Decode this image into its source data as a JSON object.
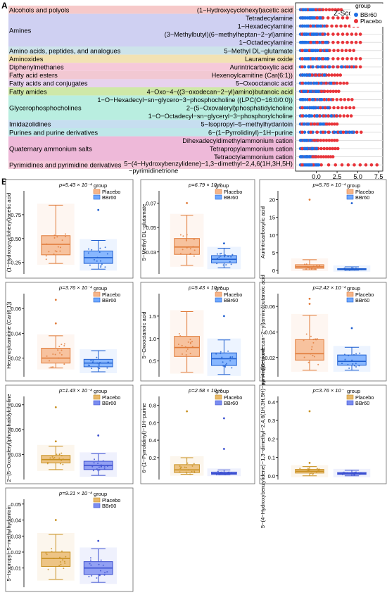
{
  "panel_labels": {
    "a": "A",
    "b": "B"
  },
  "chart_data": [
    {
      "type": "scatter",
      "panel": "A",
      "xlabel": "Z-Score",
      "xlim": [
        -2.5,
        8
      ],
      "xticks": [
        "0.0",
        "2.5",
        "5.0",
        "7.5"
      ],
      "xtick_values": [
        0,
        2.5,
        5,
        7.5
      ],
      "legend": {
        "title": "group",
        "placement": "top-right",
        "items": [
          {
            "name": "BBr60",
            "color": "#1f6fe5"
          },
          {
            "name": "Placebo",
            "color": "#e8343a"
          }
        ]
      },
      "classes": [
        {
          "name": "Alcohols and polyols",
          "color": "#f6c9c9",
          "rows": 1
        },
        {
          "name": "Amines",
          "color": "#cfd0f2",
          "rows": 4
        },
        {
          "name": "Amino acids, peptides, and analogues",
          "color": "#cde3ea",
          "rows": 1
        },
        {
          "name": "Aminoxides",
          "color": "#f2e2b4",
          "rows": 1
        },
        {
          "name": "Diphenylmethanes",
          "color": "#f6c9d9",
          "rows": 1
        },
        {
          "name": "Fatty acid esters",
          "color": "#f2c8d2",
          "rows": 1
        },
        {
          "name": "Fatty acids and conjugates",
          "color": "#e7d2ee",
          "rows": 1
        },
        {
          "name": "Fatty amides",
          "color": "#cfe8a8",
          "rows": 1
        },
        {
          "name": "Glycerophosphocholines",
          "color": "#b9eee0",
          "rows": 3
        },
        {
          "name": "Imidazolidines",
          "color": "#c6def0",
          "rows": 1
        },
        {
          "name": "Purines and purine derivatives",
          "color": "#bfe7e9",
          "rows": 1
        },
        {
          "name": "Quaternary ammonium salts",
          "color": "#eeb9d9",
          "rows": 3
        },
        {
          "name": "Pyrimidines and pyrimidine derivatives",
          "color": "#f6c9da",
          "rows": 1
        }
      ],
      "metabolites": [
        {
          "name": "(1−Hydroxycyclohexyl)acetic acid",
          "bbr_max": 0.7,
          "pla_max": 3.0
        },
        {
          "name": "Tetradecylamine",
          "bbr_max": 0.8,
          "pla_max": 5.3
        },
        {
          "name": "1−Hexadecylamine",
          "bbr_max": 1.2,
          "pla_max": 5.0
        },
        {
          "name": "(3−Methylbutyl)(6−methylheptan−2−yl)amine",
          "bbr_max": 1.0,
          "pla_max": 5.3
        },
        {
          "name": "1−Octadecylamine",
          "bbr_max": 1.4,
          "pla_max": 5.3
        },
        {
          "name": "5−Methyl DL−glutamate",
          "bbr_max": 1.4,
          "pla_max": 4.5
        },
        {
          "name": "Lauramine oxide",
          "bbr_max": 1.4,
          "pla_max": 5.3
        },
        {
          "name": "Aurintricarboxylic acid",
          "bbr_max": 4.5,
          "pla_max": 5.3
        },
        {
          "name": "Hexenoylcarnitine (Car(6:1))",
          "bbr_max": 1.2,
          "pla_max": 2.9
        },
        {
          "name": "5−Oxooctanoic acid",
          "bbr_max": 2.2,
          "pla_max": 3.7
        },
        {
          "name": "4−Oxo−4−((3−oxodecan−2−yl)amino)butanoic acid",
          "bbr_max": 0.9,
          "pla_max": 2.7
        },
        {
          "name": "1−O−Hexadecyl−sn−glycero−3−phosphocholine ((LPC(O−16:0/0:0))",
          "bbr_max": 1.8,
          "pla_max": 4.3
        },
        {
          "name": "2−(5−Oxovaleryl)phosphatidylcholine",
          "bbr_max": 1.6,
          "pla_max": 4.5
        },
        {
          "name": "1−O−Octadecyl−sn−glyceryl−3−phosphorylcholine",
          "bbr_max": 2.5,
          "pla_max": 4.2
        },
        {
          "name": "5−Isopropyl−5−methylhydantoin",
          "bbr_max": 1.3,
          "pla_max": 2.5
        },
        {
          "name": "6−(1−Pyrrolidinyl)−1H−purine",
          "bbr_max": 4.5,
          "pla_max": 5.4
        },
        {
          "name": "Dihexadecyldimethylammonium cation",
          "bbr_max": 0.2,
          "pla_max": 2.5
        },
        {
          "name": "Tetrapropylammonium cation",
          "bbr_max": 0.1,
          "pla_max": 2.6
        },
        {
          "name": "Tetraoctylammonium cation",
          "bbr_max": 0.0,
          "pla_max": 2.0
        },
        {
          "name": "5−(4−Hydroxybenzylidene)−1,3−dimethyl−2,4,6(1H,3H,5H)\n−pyrimidinetrione",
          "bbr_max": 0.3,
          "pla_max": 7.3
        }
      ]
    },
    {
      "type": "box",
      "panel": "B",
      "legend": {
        "title": "group",
        "items": [
          {
            "name": "Placebo"
          },
          {
            "name": "BBr60"
          }
        ]
      },
      "colors": {
        "placebo_fill": "#f5b58a",
        "placebo_stroke": "#e07b39",
        "bbr_fill": "#6ea8ff",
        "bbr_stroke": "#1f5fd0",
        "placebo_fill_alt": "#e8b86a",
        "placebo_stroke_alt": "#c89020",
        "bbr_fill_alt": "#7a8cf0",
        "bbr_stroke_alt": "#3b4fd0"
      },
      "plots": [
        {
          "ylabel": "(1−Hydroxycyclohexyl)acetic acid",
          "p": "p=5.43 × 10⁻⁴",
          "yticks": [
            "0.25",
            "0.50",
            "0.75"
          ],
          "ytick_values": [
            0.25,
            0.5,
            0.75
          ],
          "ylim": [
            0.13,
            1.0
          ],
          "placebo": [
            0.24,
            0.33,
            0.44,
            0.53,
            0.85
          ],
          "bbr": [
            0.18,
            0.24,
            0.3,
            0.37,
            0.48
          ],
          "placebo_out": [],
          "bbr_out": [
            0.8
          ],
          "alt": false
        },
        {
          "ylabel": "5−Methyl DL−glutamate",
          "p": "p=6.79 × 10⁻⁵",
          "yticks": [
            "0.03",
            "0.05",
            "0.07"
          ],
          "ytick_values": [
            0.03,
            0.05,
            0.07
          ],
          "ylim": [
            0.012,
            0.08
          ],
          "placebo": [
            0.019,
            0.028,
            0.034,
            0.041,
            0.06
          ],
          "bbr": [
            0.017,
            0.021,
            0.024,
            0.027,
            0.033
          ],
          "placebo_out": [
            0.07
          ],
          "bbr_out": [
            0.037
          ],
          "alt": false
        },
        {
          "ylabel": "Aurintricarboxylic acid",
          "p": "p=5.76 × 10⁻⁴",
          "yticks": [
            "0",
            "5",
            "10",
            "15",
            "20"
          ],
          "ytick_values": [
            0,
            5,
            10,
            15,
            20
          ],
          "ylim": [
            -1,
            22.5
          ],
          "placebo": [
            0.2,
            0.6,
            1.0,
            1.6,
            3.0
          ],
          "bbr": [
            0.05,
            0.15,
            0.3,
            0.5,
            1.0
          ],
          "placebo_out": [
            20
          ],
          "bbr_out": [
            19
          ],
          "alt": false
        },
        {
          "ylabel": "Hexenoylcarnitine (Car(6:1))",
          "p": "p=3.76 × 10⁻⁴",
          "yticks": [
            "0.02",
            "0.04",
            "0.06"
          ],
          "ytick_values": [
            0.02,
            0.04,
            0.06
          ],
          "ylim": [
            0.005,
            0.072
          ],
          "placebo": [
            0.012,
            0.016,
            0.02,
            0.028,
            0.038
          ],
          "bbr": [
            0.009,
            0.013,
            0.016,
            0.019,
            0.026
          ],
          "placebo_out": [
            0.048,
            0.067
          ],
          "bbr_out": [],
          "alt": false
        },
        {
          "ylabel": "5−Oxooctanoic acid",
          "p": "p=5.43 × 10⁻⁴",
          "yticks": [
            "0.5",
            "1.0",
            "1.5"
          ],
          "ytick_values": [
            0.5,
            1.0,
            1.5
          ],
          "ylim": [
            0.15,
            2.0
          ],
          "placebo": [
            0.25,
            0.6,
            0.8,
            1.05,
            1.6
          ],
          "bbr": [
            0.2,
            0.4,
            0.55,
            0.68,
            0.97
          ],
          "placebo_out": [],
          "bbr_out": [
            1.5
          ],
          "alt": false
        },
        {
          "ylabel": "4−Oxo−4−((3−oxodecan−2−yl)amino)butanoic acid",
          "p": "p=2.42 × 10⁻⁴",
          "yticks": [
            "0.02",
            "0.04",
            "0.06"
          ],
          "ytick_values": [
            0.02,
            0.04,
            0.06
          ],
          "ylim": [
            0.005,
            0.07
          ],
          "placebo": [
            0.01,
            0.018,
            0.023,
            0.034,
            0.053
          ],
          "bbr": [
            0.01,
            0.014,
            0.017,
            0.022,
            0.028
          ],
          "placebo_out": [
            0.062,
            0.066
          ],
          "bbr_out": [
            0.043
          ],
          "alt": false
        },
        {
          "ylabel": "2−(5−Oxovaleryl)phosphatidylcholine",
          "p": "p=1.43 × 10⁻⁴",
          "yticks": [
            "0.03",
            "0.06",
            "0.09"
          ],
          "ytick_values": [
            0.03,
            0.06,
            0.09
          ],
          "ylim": [
            0.0,
            0.1
          ],
          "placebo": [
            0.012,
            0.02,
            0.024,
            0.029,
            0.04
          ],
          "bbr": [
            0.005,
            0.012,
            0.017,
            0.022,
            0.031
          ],
          "placebo_out": [
            0.046,
            0.087
          ],
          "bbr_out": [
            0.053
          ],
          "alt": true
        },
        {
          "ylabel": "6−(1−Pyrrolidinyl)−1H−purine",
          "p": "p=2.58 × 10⁻⁴",
          "yticks": [
            "0.2",
            "0.4",
            "0.6",
            "0.8"
          ],
          "ytick_values": [
            0.2,
            0.4,
            0.6,
            0.8
          ],
          "ylim": [
            -0.05,
            0.9
          ],
          "placebo": [
            0.01,
            0.03,
            0.06,
            0.12,
            0.2
          ],
          "bbr": [
            0.005,
            0.01,
            0.02,
            0.035,
            0.06
          ],
          "placebo_out": [
            0.73
          ],
          "bbr_out": [
            0.65,
            0.3
          ],
          "alt": true
        },
        {
          "ylabel": "5−(4−Hydroxybenzylidene)−1,3−dimethyl−2,4,6(1H,3H,5H)−pyrimidinetrione",
          "p": "p=3.76 × 10⁻",
          "yticks": [
            "0.0",
            "0.1",
            "0.2",
            "0.3",
            "0.4"
          ],
          "ytick_values": [
            0.0,
            0.1,
            0.2,
            0.3,
            0.4
          ],
          "ylim": [
            -0.02,
            0.43
          ],
          "placebo": [
            0.0,
            0.015,
            0.025,
            0.035,
            0.05
          ],
          "bbr": [
            0.0,
            0.008,
            0.012,
            0.018,
            0.03
          ],
          "placebo_out": [
            0.35,
            0.07
          ],
          "bbr_out": [],
          "alt": true
        },
        {
          "ylabel": "5−Isopropyl−5−methylhydantoin",
          "p": "p=9.21 × 10⁻⁴",
          "yticks": [
            "0.01",
            "0.02",
            "0.03",
            "0.04",
            "0.05"
          ],
          "ytick_values": [
            0.01,
            0.02,
            0.03,
            0.04,
            0.05
          ],
          "ylim": [
            -0.002,
            0.053
          ],
          "placebo": [
            0.003,
            0.011,
            0.016,
            0.02,
            0.031
          ],
          "bbr": [
            0.001,
            0.006,
            0.01,
            0.014,
            0.022
          ],
          "placebo_out": [
            0.04
          ],
          "bbr_out": [
            0.027
          ],
          "alt": true
        }
      ]
    }
  ]
}
